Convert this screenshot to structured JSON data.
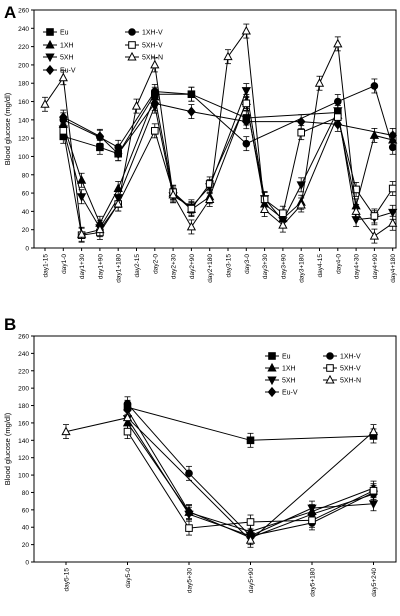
{
  "chart_data": [
    {
      "panel": "A",
      "type": "line",
      "ylabel": "Blood glucose (mg/dl)",
      "ylim": [
        0,
        260
      ],
      "yticks": [
        0,
        20,
        40,
        60,
        80,
        100,
        120,
        140,
        160,
        180,
        200,
        220,
        240,
        260
      ],
      "x": [
        "day1-15",
        "day1-0",
        "day1+30",
        "day1+90",
        "day1+180",
        "day2-15",
        "day2-0",
        "day2+30",
        "day2+90",
        "day2+180",
        "day3-15",
        "day3-0",
        "day3+30",
        "day3+90",
        "day3+180",
        "day4-15",
        "day4-0",
        "day4+30",
        "day4+90",
        "day4+180"
      ],
      "legend": [
        "Eu",
        "1XH",
        "5XH",
        "Eu-V",
        "1XH-V",
        "5XH-V",
        "5XH-N"
      ],
      "series": [
        {
          "name": "Eu",
          "marker": "square",
          "x": [
            "day1-0",
            "day1+90",
            "day1+180",
            "day2-0",
            "day2+90",
            "day3-0",
            "day4-0"
          ],
          "values": [
            122,
            110,
            103,
            168,
            168,
            142,
            148
          ]
        },
        {
          "name": "1XH",
          "marker": "triangle-up",
          "x": [
            "day1-0",
            "day1+30",
            "day1+90",
            "day1+180",
            "day2-0",
            "day2+30",
            "day2+90",
            "day2+180",
            "day3-0",
            "day3+30",
            "day3+90",
            "day3+180",
            "day4-0",
            "day4+30",
            "day4+90",
            "day4+180"
          ],
          "values": [
            135,
            74,
            27,
            65,
            165,
            60,
            42,
            56,
            160,
            48,
            32,
            50,
            145,
            46,
            123,
            118
          ]
        },
        {
          "name": "5XH",
          "marker": "triangle-down",
          "x": [
            "day1-0",
            "day1+30",
            "day1+90",
            "day1+180",
            "day2-0",
            "day2+30",
            "day2+90",
            "day2+180",
            "day3-0",
            "day3+30",
            "day3+90",
            "day3+180",
            "day4-0",
            "day4+30",
            "day4+90",
            "day4+180"
          ],
          "values": [
            130,
            56,
            22,
            55,
            155,
            57,
            45,
            67,
            172,
            54,
            30,
            69,
            150,
            31,
            33,
            39
          ]
        },
        {
          "name": "Eu-V",
          "marker": "diamond",
          "x": [
            "day1-0",
            "day1+90",
            "day1+180",
            "day2-0",
            "day2+90",
            "day3-0",
            "day3+180",
            "day4-0",
            "day4+180"
          ],
          "values": [
            143,
            122,
            103,
            158,
            149,
            138,
            138,
            135,
            123
          ]
        },
        {
          "name": "1XH-V",
          "marker": "circle",
          "x": [
            "day1-0",
            "day1+90",
            "day1+180",
            "day2-0",
            "day2+90",
            "day3-0",
            "day4-0",
            "day4+90",
            "day4+180"
          ],
          "values": [
            140,
            121,
            110,
            171,
            168,
            114,
            160,
            177,
            110
          ]
        },
        {
          "name": "5XH-V",
          "marker": "square-open",
          "x": [
            "day1-0",
            "day1+30",
            "day1+90",
            "day1+180",
            "day2-0",
            "day2+30",
            "day2+90",
            "day2+180",
            "day3-0",
            "day3+30",
            "day3+90",
            "day3+180",
            "day4-0",
            "day4+30",
            "day4+90",
            "day4+180"
          ],
          "values": [
            128,
            14,
            17,
            48,
            128,
            61,
            43,
            70,
            158,
            53,
            38,
            126,
            143,
            64,
            35,
            65
          ]
        },
        {
          "name": "5XH-N",
          "marker": "triangle-up-open",
          "x": [
            "day1-15",
            "day1-0",
            "day1+30",
            "day1+90",
            "day1+180",
            "day2-15",
            "day2-0",
            "day2+30",
            "day2+90",
            "day2+180",
            "day3-15",
            "day3-0",
            "day3+30",
            "day3+90",
            "day3+180",
            "day4-15",
            "day4-0",
            "day4+30",
            "day4+90",
            "day4+180"
          ],
          "values": [
            157,
            186,
            15,
            20,
            48,
            155,
            200,
            58,
            23,
            53,
            209,
            237,
            42,
            25,
            47,
            180,
            223,
            40,
            13,
            27
          ]
        }
      ]
    },
    {
      "panel": "B",
      "type": "line",
      "ylabel": "Blood glucose (mg/dl)",
      "ylim": [
        0,
        260
      ],
      "yticks": [
        0,
        20,
        40,
        60,
        80,
        100,
        120,
        140,
        160,
        180,
        200,
        220,
        240,
        260
      ],
      "x": [
        "day5-15",
        "day5-0",
        "day5+30",
        "day5+90",
        "day5+180",
        "day5+240"
      ],
      "legend": [
        "Eu",
        "1XH",
        "5XH",
        "Eu-V",
        "1XH-V",
        "5XH-V",
        "5XH-N"
      ],
      "series": [
        {
          "name": "Eu",
          "marker": "square",
          "x": [
            "day5-0",
            "day5+90",
            "day5+240"
          ],
          "values": [
            178,
            140,
            145
          ]
        },
        {
          "name": "1XH",
          "marker": "triangle-up",
          "x": [
            "day5-0",
            "day5+30",
            "day5+90",
            "day5+180",
            "day5+240"
          ],
          "values": [
            160,
            57,
            35,
            58,
            85
          ]
        },
        {
          "name": "5XH",
          "marker": "triangle-down",
          "x": [
            "day5-0",
            "day5+30",
            "day5+90",
            "day5+180",
            "day5+240"
          ],
          "values": [
            165,
            55,
            30,
            62,
            67
          ]
        },
        {
          "name": "Eu-V",
          "marker": "diamond",
          "x": [
            "day5-0",
            "day5+30",
            "day5+90",
            "day5+180",
            "day5+240"
          ],
          "values": [
            175,
            58,
            28,
            55,
            78
          ]
        },
        {
          "name": "1XH-V",
          "marker": "circle",
          "x": [
            "day5-0",
            "day5+30",
            "day5+90",
            "day5+180",
            "day5+240"
          ],
          "values": [
            182,
            102,
            30,
            45,
            80
          ]
        },
        {
          "name": "5XH-V",
          "marker": "square-open",
          "x": [
            "day5-0",
            "day5+30",
            "day5+90",
            "day5+180",
            "day5+240"
          ],
          "values": [
            150,
            39,
            46,
            48,
            82
          ]
        },
        {
          "name": "5XH-N",
          "marker": "triangle-up-open",
          "x": [
            "day5-15",
            "day5-0",
            "day5+90",
            "day5+240"
          ],
          "values": [
            150,
            166,
            25,
            150
          ]
        }
      ]
    }
  ]
}
